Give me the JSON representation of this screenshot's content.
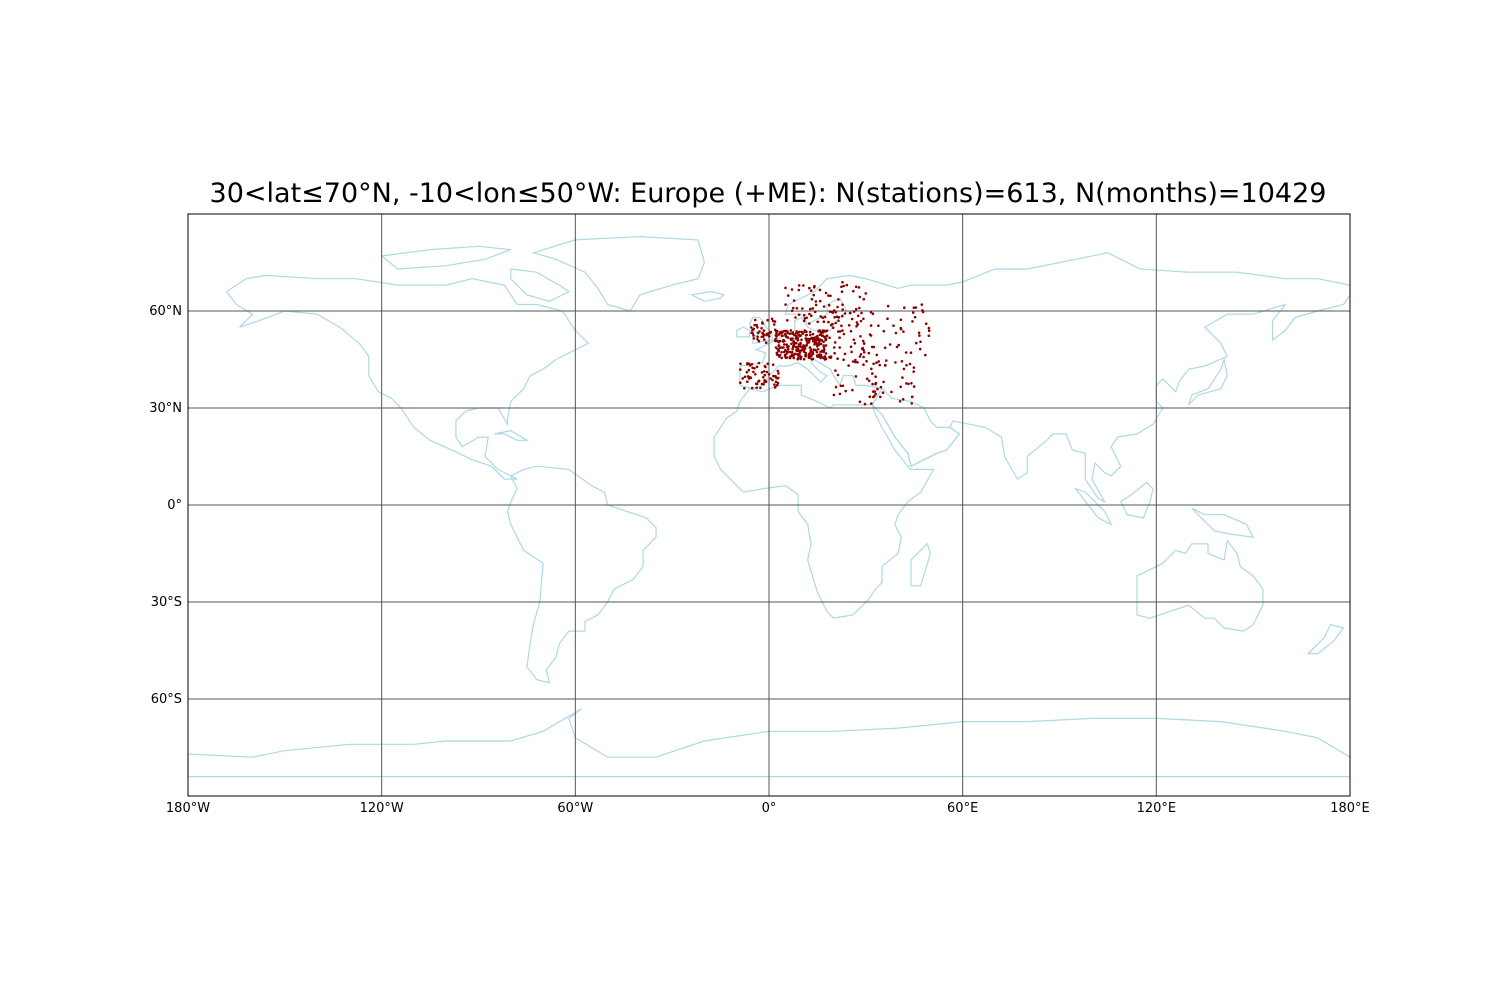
{
  "title": "30<lat≤70°N, -10<lon≤50°W: Europe (+ME): N(stations)=613, N(months)=10429",
  "colors": {
    "coastline": "#add8e6",
    "gridline": "#555555",
    "station": "#8b0000",
    "frame": "#000000"
  },
  "axes": {
    "lon_ticks": [
      {
        "value": -180,
        "label": "180°W"
      },
      {
        "value": -120,
        "label": "120°W"
      },
      {
        "value": -60,
        "label": "60°W"
      },
      {
        "value": 0,
        "label": "0°"
      },
      {
        "value": 60,
        "label": "60°E"
      },
      {
        "value": 120,
        "label": "120°E"
      },
      {
        "value": 180,
        "label": "180°E"
      }
    ],
    "lat_ticks": [
      {
        "value": 60,
        "label": "60°N"
      },
      {
        "value": 30,
        "label": "30°N"
      },
      {
        "value": 0,
        "label": "0°"
      },
      {
        "value": -30,
        "label": "30°S"
      },
      {
        "value": -60,
        "label": "60°S"
      }
    ],
    "lon_range": [
      -180,
      180
    ],
    "lat_range": [
      -90,
      90
    ]
  },
  "stations": {
    "count": 613,
    "lat_range": [
      30,
      70
    ],
    "lon_range": [
      -10,
      50
    ]
  }
}
